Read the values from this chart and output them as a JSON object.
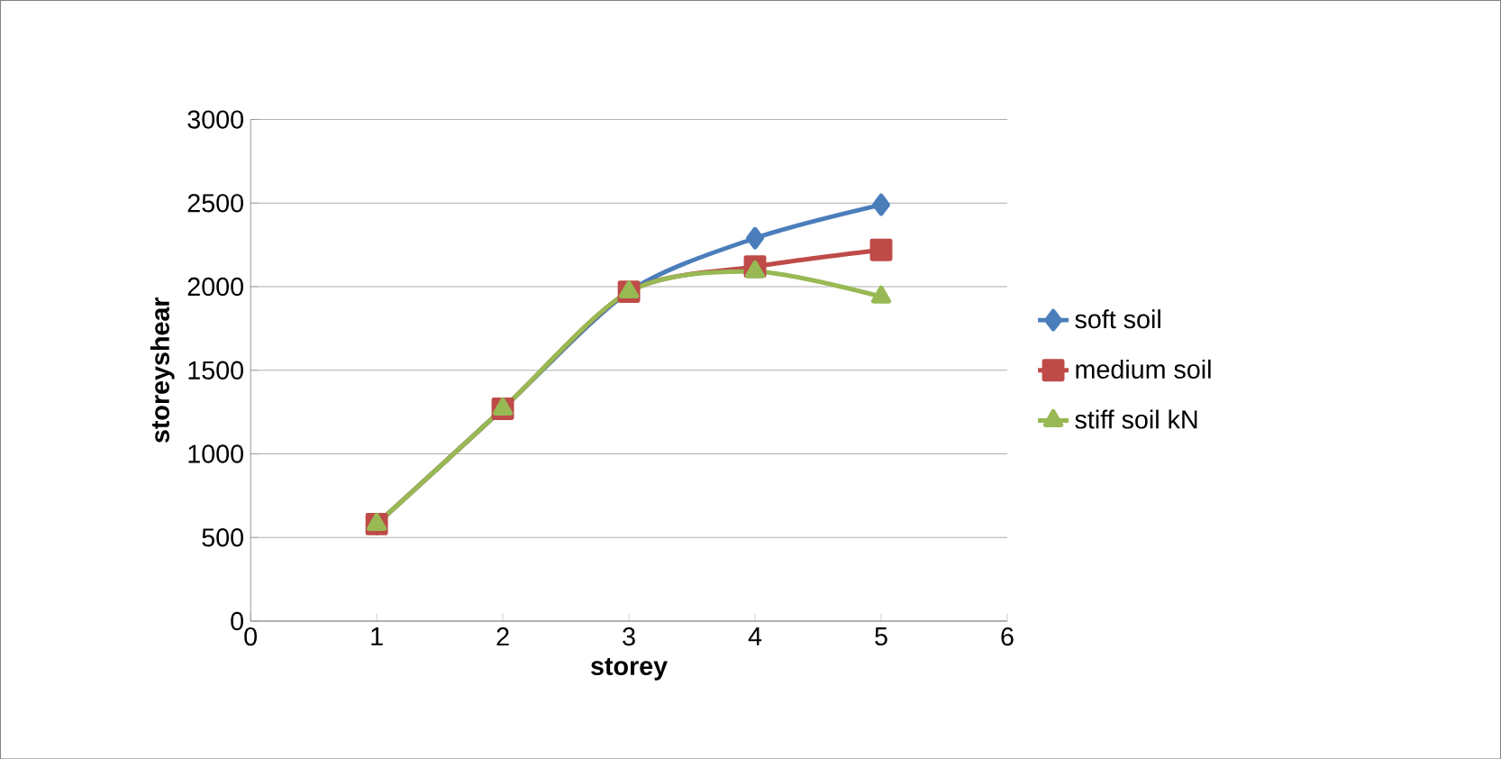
{
  "chart_data": {
    "type": "line",
    "xlabel": "storey",
    "ylabel": "storeyshear",
    "x": [
      1,
      2,
      3,
      4,
      5
    ],
    "series": [
      {
        "name": "soft soil",
        "color": "#4a7ebb",
        "marker": "diamond",
        "values": [
          580,
          1270,
          1970,
          2290,
          2490
        ]
      },
      {
        "name": "medium soil",
        "color": "#be4b48",
        "marker": "square",
        "values": [
          580,
          1270,
          1970,
          2120,
          2220
        ]
      },
      {
        "name": "stiff soil kN",
        "color": "#98b954",
        "marker": "triangle",
        "values": [
          580,
          1270,
          1970,
          2090,
          1940
        ]
      }
    ],
    "xlim": [
      0,
      6
    ],
    "xticks": [
      0,
      1,
      2,
      3,
      4,
      5,
      6
    ],
    "ylim": [
      0,
      3000
    ],
    "yticks": [
      0,
      500,
      1000,
      1500,
      2000,
      2500,
      3000
    ],
    "grid": "y",
    "legend": "right",
    "line_style": "solid"
  }
}
